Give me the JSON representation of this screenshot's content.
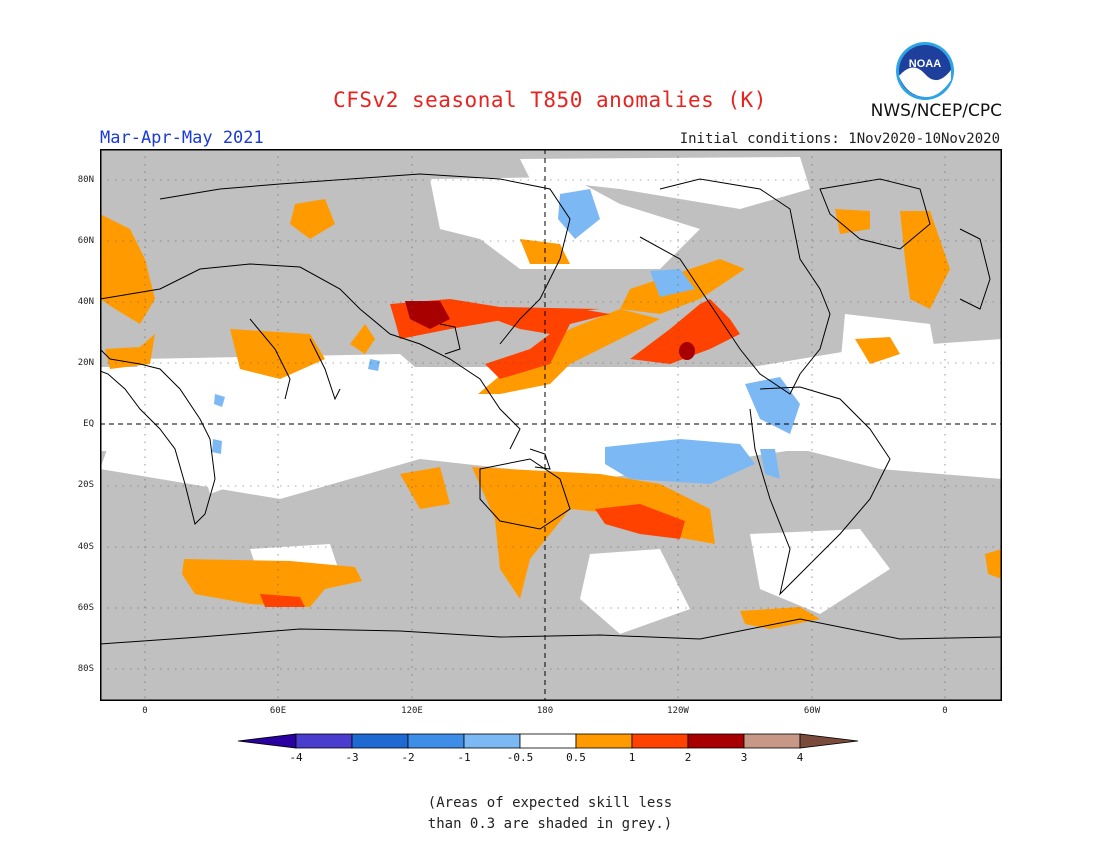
{
  "title": "CFSv2 seasonal T850 anomalies (K)",
  "season": "Mar-Apr-May 2021",
  "initial_conditions": "Initial conditions: 1Nov2020-10Nov2020",
  "agency": "NWS/NCEP/CPC",
  "logo_text": "NOAA",
  "map": {
    "lat_labels": [
      "80N",
      "60N",
      "40N",
      "20N",
      "EQ",
      "20S",
      "40S",
      "60S",
      "80S"
    ],
    "lon_labels": [
      "0",
      "60E",
      "120E",
      "180",
      "120W",
      "60W",
      "0"
    ]
  },
  "colorbar": {
    "colors": [
      "#2a00a0",
      "#4a3ccc",
      "#1e6ad2",
      "#3e8ee8",
      "#7cb8f4",
      "#ffffff",
      "#ff9a00",
      "#ff4200",
      "#a80000",
      "#c89886",
      "#7a4a3a"
    ],
    "labels": [
      "-4",
      "-3",
      "-2",
      "-1",
      "-0.5",
      "0.5",
      "1",
      "2",
      "3",
      "4"
    ]
  },
  "skill_note": [
    "(Areas of expected skill less",
    "than 0.3 are shaded in grey.)"
  ],
  "colors": {
    "grey_low_skill": "#c0c0c0",
    "orange_0_5_to_1": "#ff9a00",
    "red_1_to_2": "#ff4200",
    "darkred_2_to_3": "#a80000",
    "lightblue_neg": "#7cb8f4"
  }
}
